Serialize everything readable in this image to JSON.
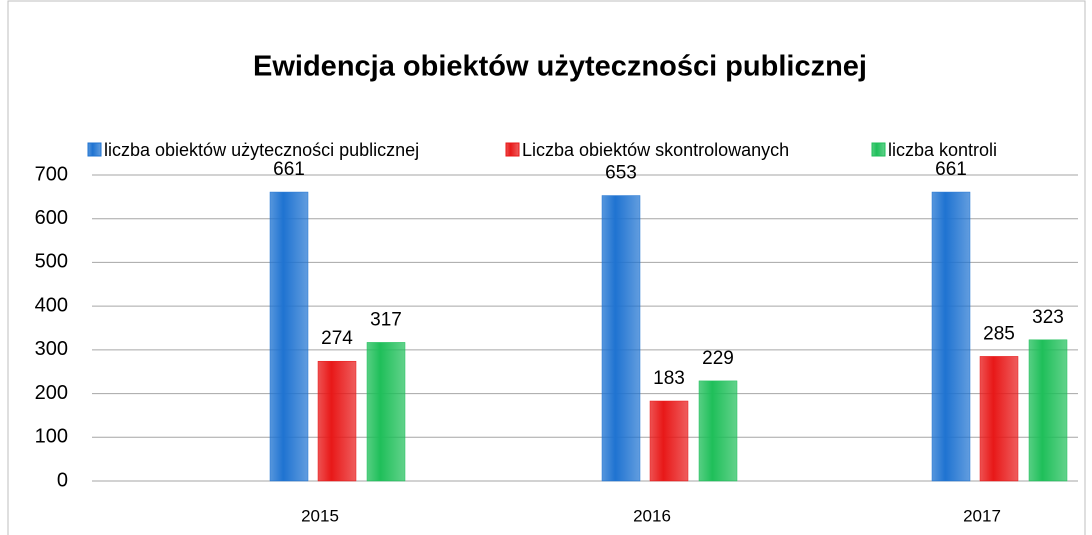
{
  "chart_data": {
    "type": "bar",
    "title": "Ewidencja obiektów użyteczności publicznej",
    "categories": [
      "2015",
      "2016",
      "2017"
    ],
    "series": [
      {
        "name": "liczba obiektów użyteczności publicznej",
        "color": "#1f73d1",
        "values": [
          661,
          653,
          661
        ]
      },
      {
        "name": "Liczba obiektów skontrolowanych",
        "color": "#e81818",
        "values": [
          274,
          183,
          285
        ]
      },
      {
        "name": "liczba kontroli",
        "color": "#1fbf5a",
        "values": [
          317,
          229,
          323
        ]
      }
    ],
    "ylim": [
      0,
      700
    ],
    "yticks": [
      0,
      100,
      200,
      300,
      400,
      500,
      600,
      700
    ],
    "grid": true,
    "legend": "top"
  }
}
